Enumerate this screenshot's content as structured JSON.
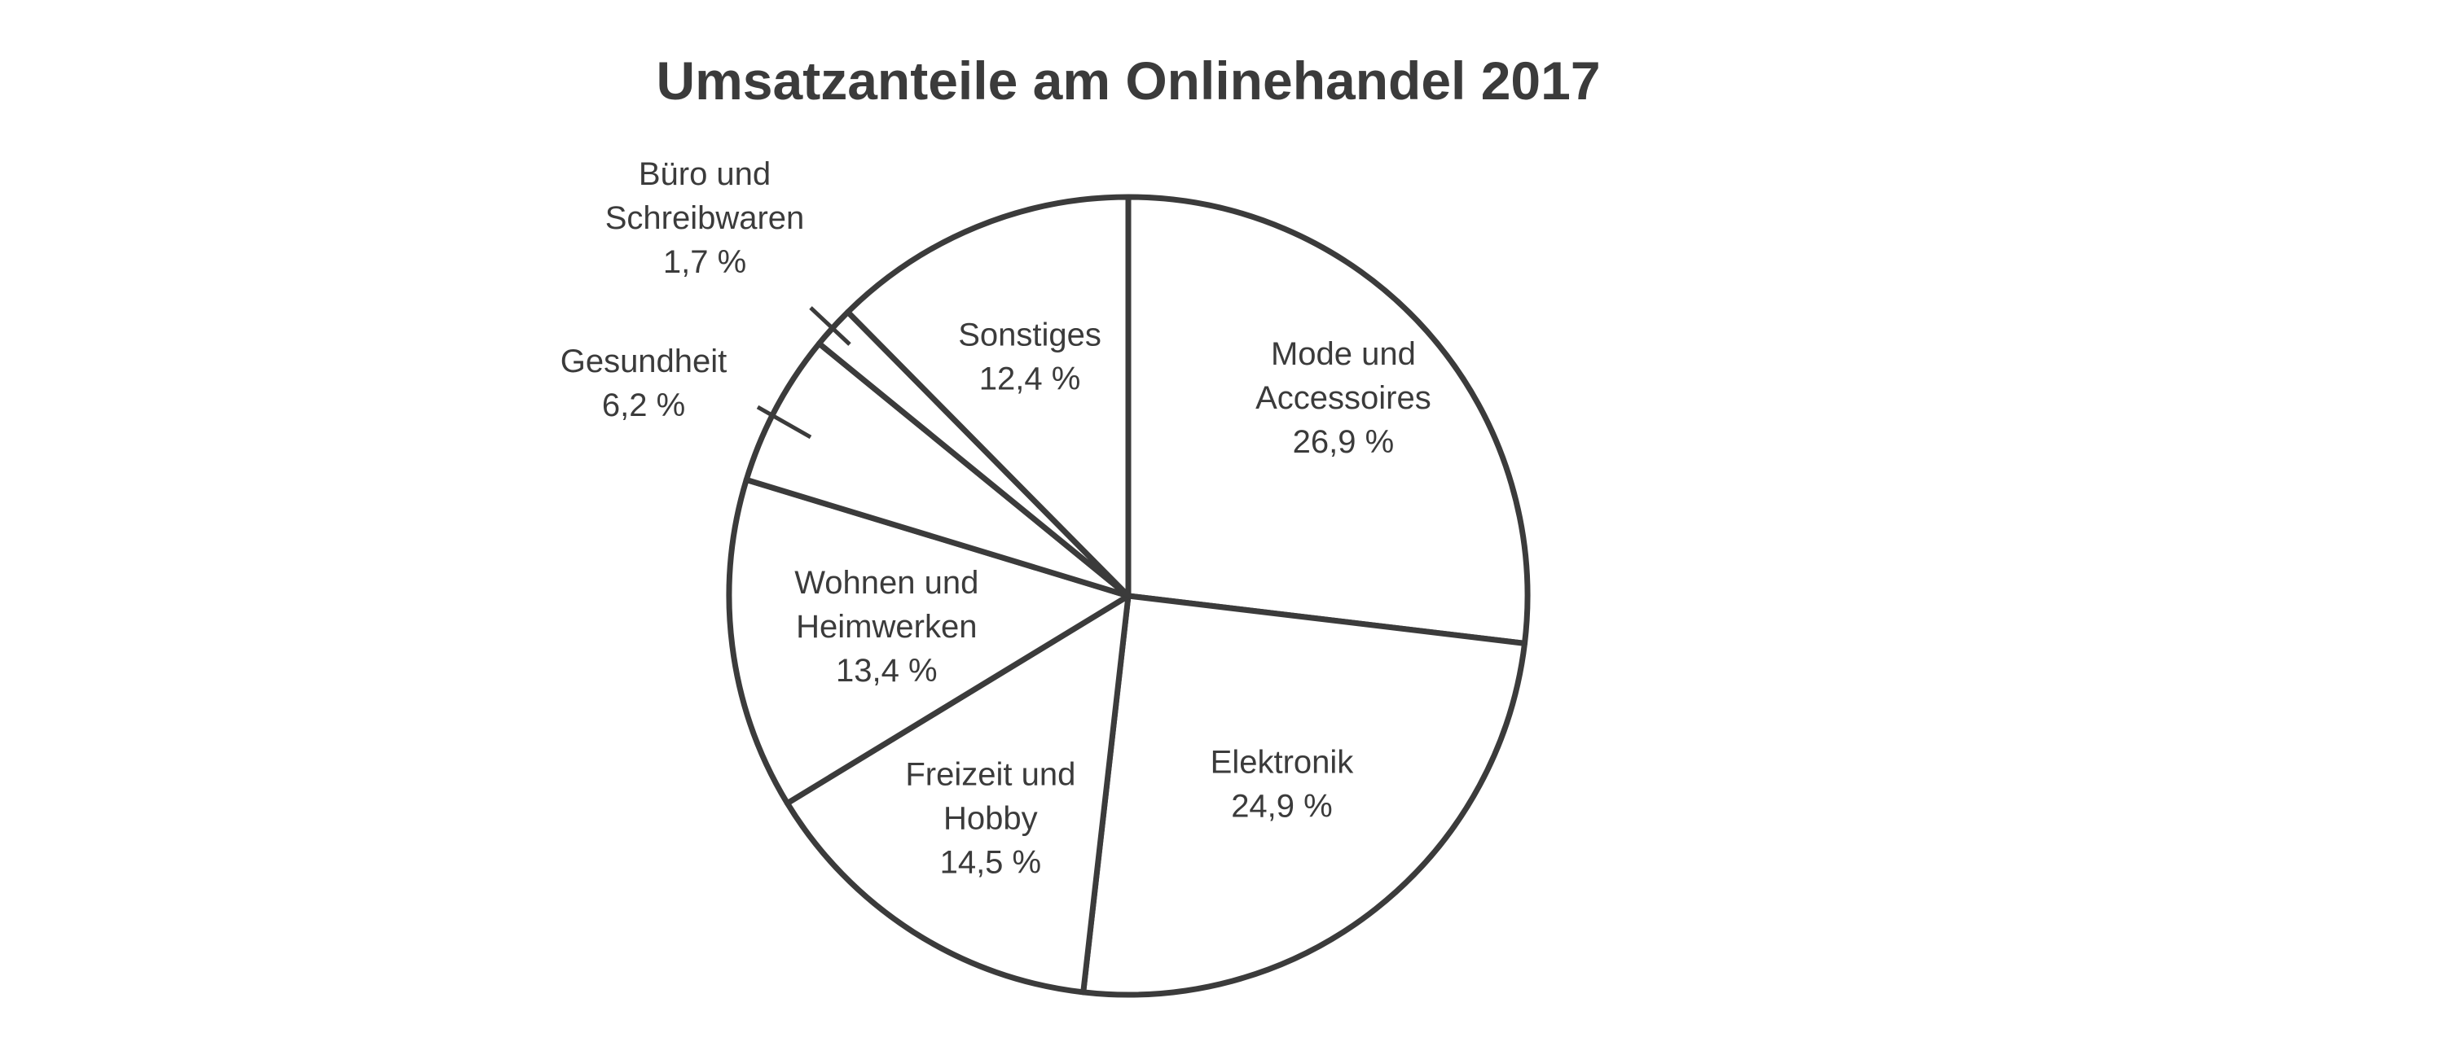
{
  "chart_data": {
    "type": "pie",
    "title": "Umsatzanteile am Onlinehandel 2017",
    "unit": "%",
    "slices": [
      {
        "name": "Mode und Accessoires",
        "label_lines": [
          "Mode und",
          "Accessoires",
          "26,9 %"
        ],
        "value": 26.9
      },
      {
        "name": "Elektronik",
        "label_lines": [
          "Elektronik",
          "24,9 %"
        ],
        "value": 24.9
      },
      {
        "name": "Freizeit und Hobby",
        "label_lines": [
          "Freizeit und",
          "Hobby",
          "14,5 %"
        ],
        "value": 14.5
      },
      {
        "name": "Wohnen und Heimwerken",
        "label_lines": [
          "Wohnen und",
          "Heimwerken",
          "13,4 %"
        ],
        "value": 13.4
      },
      {
        "name": "Gesundheit",
        "label_lines": [
          "Gesundheit",
          "6,2 %"
        ],
        "value": 6.2
      },
      {
        "name": "Büro und Schreibwaren",
        "label_lines": [
          "Büro und",
          "Schreibwaren",
          "1,7 %"
        ],
        "value": 1.7
      },
      {
        "name": "Sonstiges",
        "label_lines": [
          "Sonstiges",
          "12,4 %"
        ],
        "value": 12.4
      }
    ],
    "start_angle": "12 o'clock",
    "direction": "clockwise",
    "colors": {
      "fill": "#ffffff",
      "stroke": "#3b3b3b",
      "text": "#3b3b3b"
    }
  }
}
